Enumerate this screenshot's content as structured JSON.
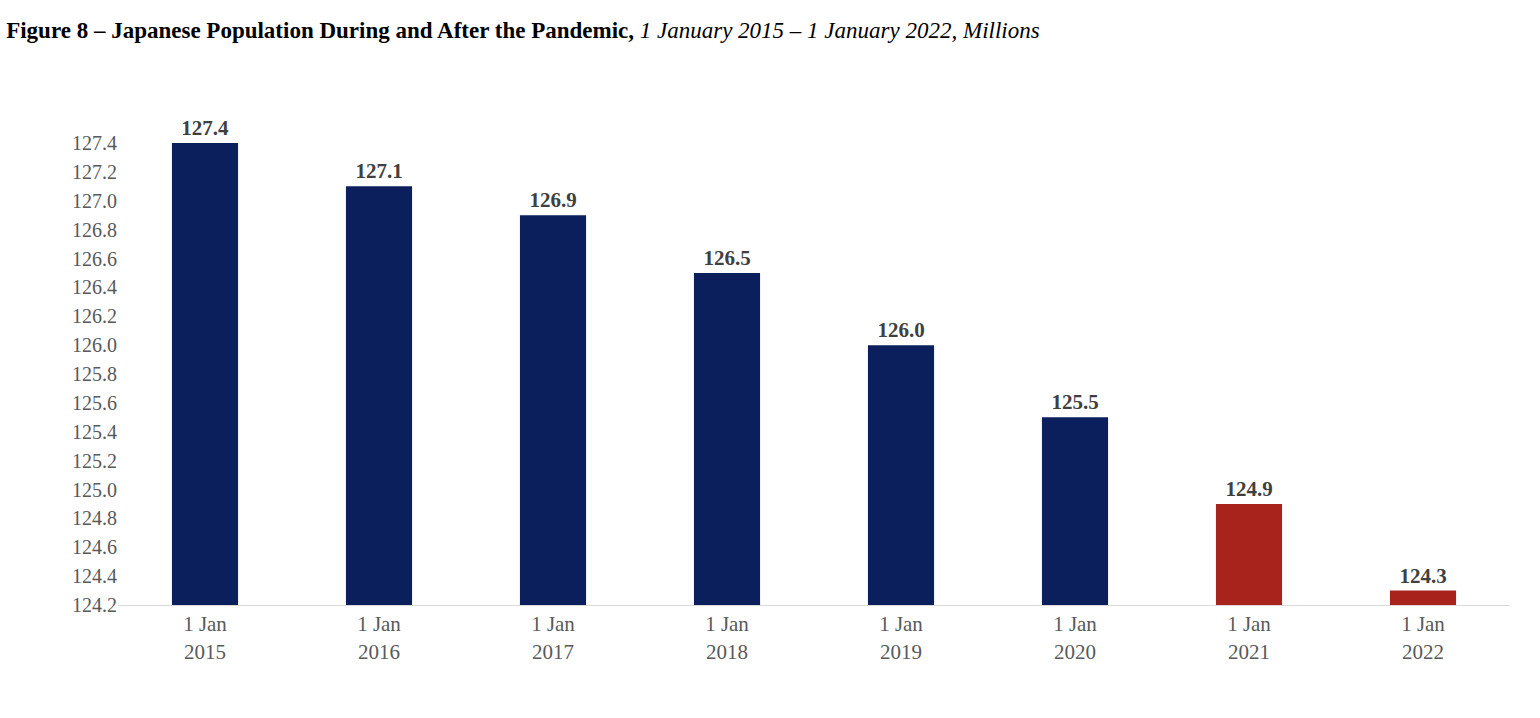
{
  "chart_data": {
    "type": "bar",
    "title": "Figure 8 – Japanese Population During and After the Pandemic,",
    "subtitle": "1 January 2015 – 1 January 2022, Millions",
    "categories": [
      "1 Jan 2015",
      "1 Jan 2016",
      "1 Jan 2017",
      "1 Jan 2018",
      "1 Jan 2019",
      "1 Jan 2020",
      "1 Jan 2021",
      "1 Jan 2022"
    ],
    "values": [
      127.4,
      127.1,
      126.9,
      126.5,
      126,
      125.5,
      124.9,
      124.3
    ],
    "value_labels": [
      "127.4",
      "127.1",
      "126.9",
      "126.5",
      "126.0",
      "125.5",
      "124.9",
      "124.3"
    ],
    "colors": [
      "#0b1f5c",
      "#0b1f5c",
      "#0b1f5c",
      "#0b1f5c",
      "#0b1f5c",
      "#0b1f5c",
      "#a8231c",
      "#a8231c"
    ],
    "ylim": [
      124.2,
      127.4
    ],
    "yticks": [
      124.2,
      124.4,
      124.6,
      124.8,
      {
        "value": 125,
        "label": "125.0"
      },
      125.2,
      125.4,
      125.6,
      125.8,
      {
        "value": 126,
        "label": "126.0"
      },
      126.2,
      126.4,
      126.6,
      126.8,
      {
        "value": 127,
        "label": "127.0"
      },
      127.2,
      127.4
    ],
    "grid": false,
    "data_labels": true
  }
}
